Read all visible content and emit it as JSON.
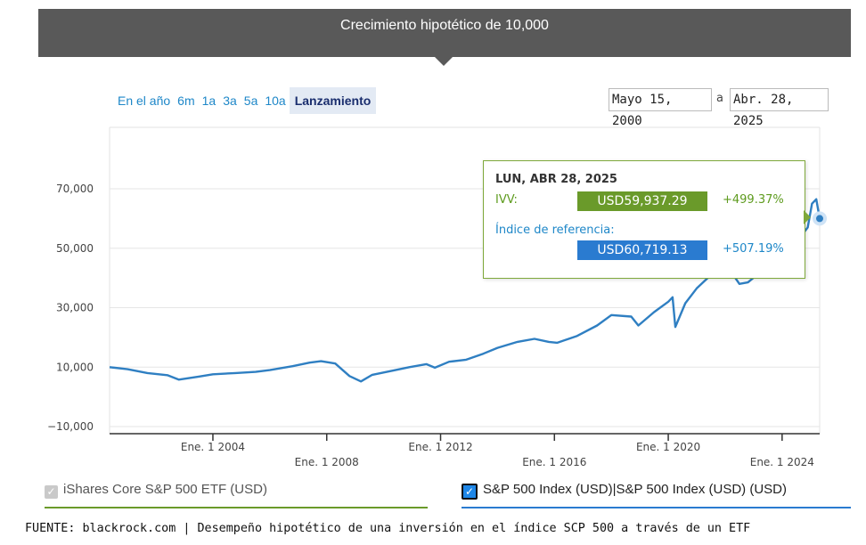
{
  "banner": {
    "title": "Crecimiento hipotético de 10,000"
  },
  "range_buttons": [
    "En el año",
    "6m",
    "1a",
    "3a",
    "5a",
    "10a",
    "Lanzamiento"
  ],
  "active_range": "Lanzamiento",
  "date_range": {
    "start": "Mayo 15, 2000",
    "separator": "a",
    "end": "Abr. 28, 2025"
  },
  "tooltip": {
    "date": "LUN, ABR 28, 2025",
    "ivv_label": "IVV:",
    "ivv_value": "USD59,937.29",
    "ivv_pct": "+499.37%",
    "index_label": "Índice de referencia:",
    "index_value": "USD60,719.13",
    "index_pct": "+507.19%"
  },
  "legend": {
    "ivv": "iShares Core S&P 500 ETF (USD)",
    "index": "S&P 500 Index (USD)|S&P 500 Index (USD) (USD)"
  },
  "source_note": "FUENTE: blackrock.com | Desempeño hipotético de una inversión en el índice SCP 500 a través de un ETF",
  "colors": {
    "line": "#2f7fc2",
    "ivv": "#6a9a2a",
    "index": "#2a7bd0",
    "banner": "#595959"
  },
  "chart_data": {
    "type": "line",
    "ylim": [
      -10000,
      80000
    ],
    "y_ticks": [
      "70,000",
      "50,000",
      "30,000",
      "10,000",
      "−10,000"
    ],
    "y_tick_values": [
      70000,
      50000,
      30000,
      10000,
      -10000
    ],
    "x_ticks": [
      "Ene. 1 2004",
      "Ene. 1 2008",
      "Ene. 1 2012",
      "Ene. 1 2016",
      "Ene. 1 2020",
      "Ene. 1 2024"
    ],
    "x_tick_years": [
      2004,
      2008,
      2012,
      2016,
      2020,
      2024
    ],
    "xlim": [
      2000.37,
      2025.32
    ],
    "grid": true,
    "series": [
      {
        "x": [
          2000.37,
          2001.0,
          2001.7,
          2002.4,
          2002.8,
          2003.5,
          2004.0,
          2004.8,
          2005.5,
          2006.0,
          2006.8,
          2007.4,
          2007.8,
          2008.3,
          2008.8,
          2009.2,
          2009.6,
          2010.3,
          2010.9,
          2011.5,
          2011.8,
          2012.3,
          2012.9,
          2013.5,
          2014.0,
          2014.7,
          2015.3,
          2015.8,
          2016.1,
          2016.8,
          2017.5,
          2018.0,
          2018.7,
          2018.95,
          2019.5,
          2020.0,
          2020.15,
          2020.25,
          2020.6,
          2021.0,
          2021.5,
          2022.0,
          2022.5,
          2022.8,
          2023.3,
          2023.8,
          2024.0,
          2024.5,
          2024.9,
          2025.05,
          2025.2,
          2025.32
        ],
        "values": [
          10000,
          9300,
          8000,
          7300,
          5800,
          6800,
          7600,
          8000,
          8400,
          9000,
          10300,
          11500,
          12000,
          11200,
          7000,
          5200,
          7400,
          8800,
          10000,
          11000,
          9800,
          11800,
          12500,
          14500,
          16500,
          18500,
          19500,
          18500,
          18200,
          20500,
          24000,
          27500,
          27000,
          24000,
          28500,
          32000,
          33500,
          23500,
          31500,
          36500,
          41000,
          45000,
          38000,
          38500,
          42500,
          44500,
          45000,
          52000,
          57000,
          65000,
          66500,
          60000
        ]
      }
    ]
  }
}
